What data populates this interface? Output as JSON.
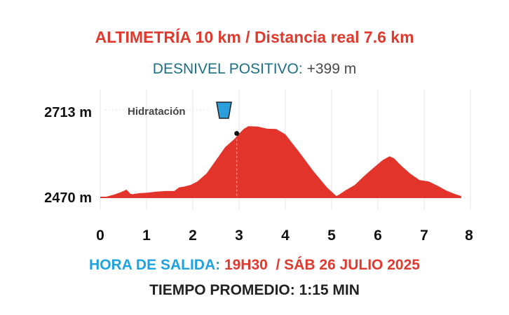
{
  "header": {
    "title": "ALTIMETRÍA 10 km / Distancia real 7.6 km",
    "desnivel_label": "DESNIVEL POSITIVO:",
    "desnivel_value": "+399 m"
  },
  "colors": {
    "profile": "#e2342b",
    "title": "#e03a2f",
    "desnivel_label": "#1d6f86",
    "salida_label": "#1ea3e0",
    "water_icon": "#2a9fdc"
  },
  "chart_data": {
    "type": "area",
    "x_unit": "km",
    "y_unit": "m",
    "xlim": [
      0,
      7.8
    ],
    "ylim": [
      2470,
      2713
    ],
    "x_ticks": [
      0,
      1,
      2,
      3,
      4,
      5,
      6,
      7,
      8
    ],
    "y_tick_labels": [
      "2713 m",
      "2470 m"
    ],
    "grid": true,
    "annotation": {
      "label": "Hidratación",
      "x": 2.95,
      "icon": "water-cup-icon"
    },
    "x": [
      0,
      0.1,
      0.3,
      0.45,
      0.57,
      0.65,
      0.7,
      0.85,
      1.0,
      1.2,
      1.4,
      1.6,
      1.7,
      1.8,
      1.95,
      2.1,
      2.3,
      2.5,
      2.7,
      2.9,
      3.0,
      3.1,
      3.2,
      3.4,
      3.6,
      3.8,
      4.0,
      4.3,
      4.6,
      4.9,
      5.1,
      5.15,
      5.3,
      5.5,
      5.7,
      5.9,
      6.1,
      6.25,
      6.35,
      6.5,
      6.7,
      6.9,
      7.1,
      7.3,
      7.5,
      7.7,
      7.8
    ],
    "y": [
      2470,
      2471,
      2478,
      2485,
      2492,
      2480,
      2479,
      2482,
      2483,
      2486,
      2488,
      2488,
      2498,
      2500,
      2505,
      2515,
      2538,
      2575,
      2612,
      2635,
      2650,
      2663,
      2671,
      2670,
      2664,
      2663,
      2648,
      2598,
      2545,
      2498,
      2474,
      2477,
      2490,
      2505,
      2530,
      2553,
      2575,
      2586,
      2580,
      2560,
      2537,
      2519,
      2515,
      2502,
      2488,
      2478,
      2474
    ]
  },
  "footer": {
    "salida_label": "HORA DE SALIDA:",
    "salida_value": "19H30  / SÁB 26 JULIO 2025",
    "tiempo": "TIEMPO PROMEDIO: 1:15 MIN"
  }
}
